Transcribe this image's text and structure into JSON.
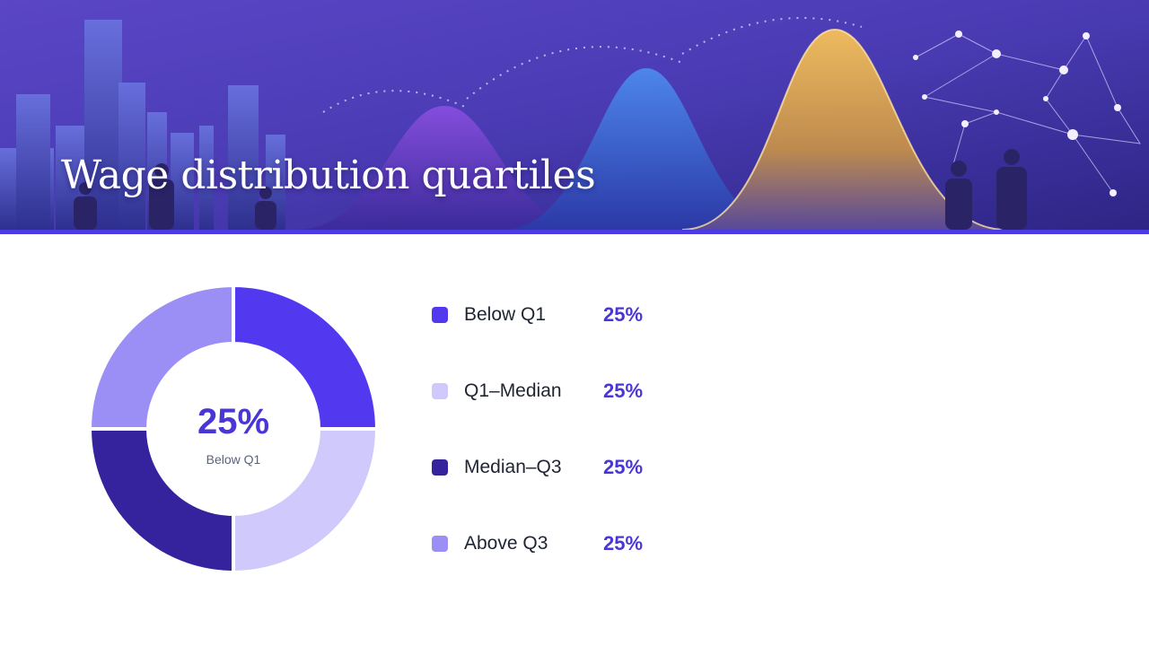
{
  "header": {
    "title": "Wage distribution quartiles"
  },
  "colors": {
    "accent": "#4b3be0",
    "below_q1": "#5239f0",
    "q1_median": "#d0c9fb",
    "median_q3": "#35229d",
    "above_q3": "#9b8ff6"
  },
  "chart_data": {
    "type": "pie",
    "style": "donut",
    "categories": [
      "Below Q1",
      "Q1–Median",
      "Median–Q3",
      "Above Q3"
    ],
    "values": [
      25,
      25,
      25,
      25
    ],
    "labels": [
      "25%",
      "25%",
      "25%",
      "25%"
    ],
    "center": {
      "value": "25%",
      "label": "Below Q1"
    },
    "legend_placement": "right"
  }
}
